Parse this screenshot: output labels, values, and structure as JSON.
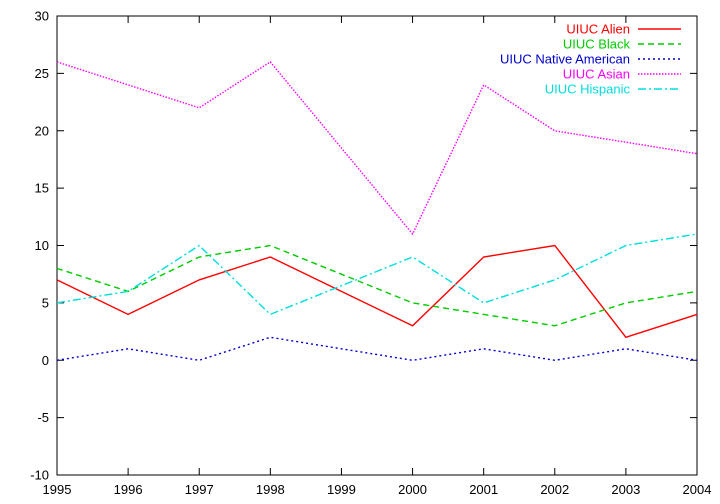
{
  "chart_data": {
    "type": "line",
    "title": "",
    "xlabel": "",
    "ylabel": "",
    "x": [
      1995,
      1996,
      1997,
      1998,
      1999,
      2000,
      2001,
      2002,
      2003,
      2004
    ],
    "xlim": [
      1995,
      2004
    ],
    "ylim": [
      -10,
      30
    ],
    "yticks": [
      -10,
      -5,
      0,
      5,
      10,
      15,
      20,
      25,
      30
    ],
    "grid": false,
    "legend_position": "top-right",
    "series": [
      {
        "name": "UIUC Alien",
        "color": "#ff0000",
        "dash": "solid",
        "values": [
          7,
          4,
          7,
          9,
          6,
          3,
          9,
          10,
          2,
          4
        ]
      },
      {
        "name": "UIUC Black",
        "color": "#00cc00",
        "dash": "dashed",
        "values": [
          8,
          6,
          9,
          10,
          7.5,
          5,
          4,
          3,
          5,
          6
        ]
      },
      {
        "name": "UIUC Native American",
        "color": "#0000cc",
        "dash": "dotted",
        "values": [
          0,
          1,
          0,
          2,
          1,
          0,
          1,
          0,
          1,
          0
        ]
      },
      {
        "name": "UIUC Asian",
        "color": "#ff00ff",
        "dash": "dotted-fine",
        "values": [
          26,
          24,
          22,
          26,
          18.5,
          11,
          24,
          20,
          19,
          18
        ]
      },
      {
        "name": "UIUC Hispanic",
        "color": "#00dddd",
        "dash": "dashdot",
        "values": [
          5,
          6,
          10,
          4,
          6.5,
          9,
          5,
          7,
          10,
          11
        ]
      }
    ]
  }
}
